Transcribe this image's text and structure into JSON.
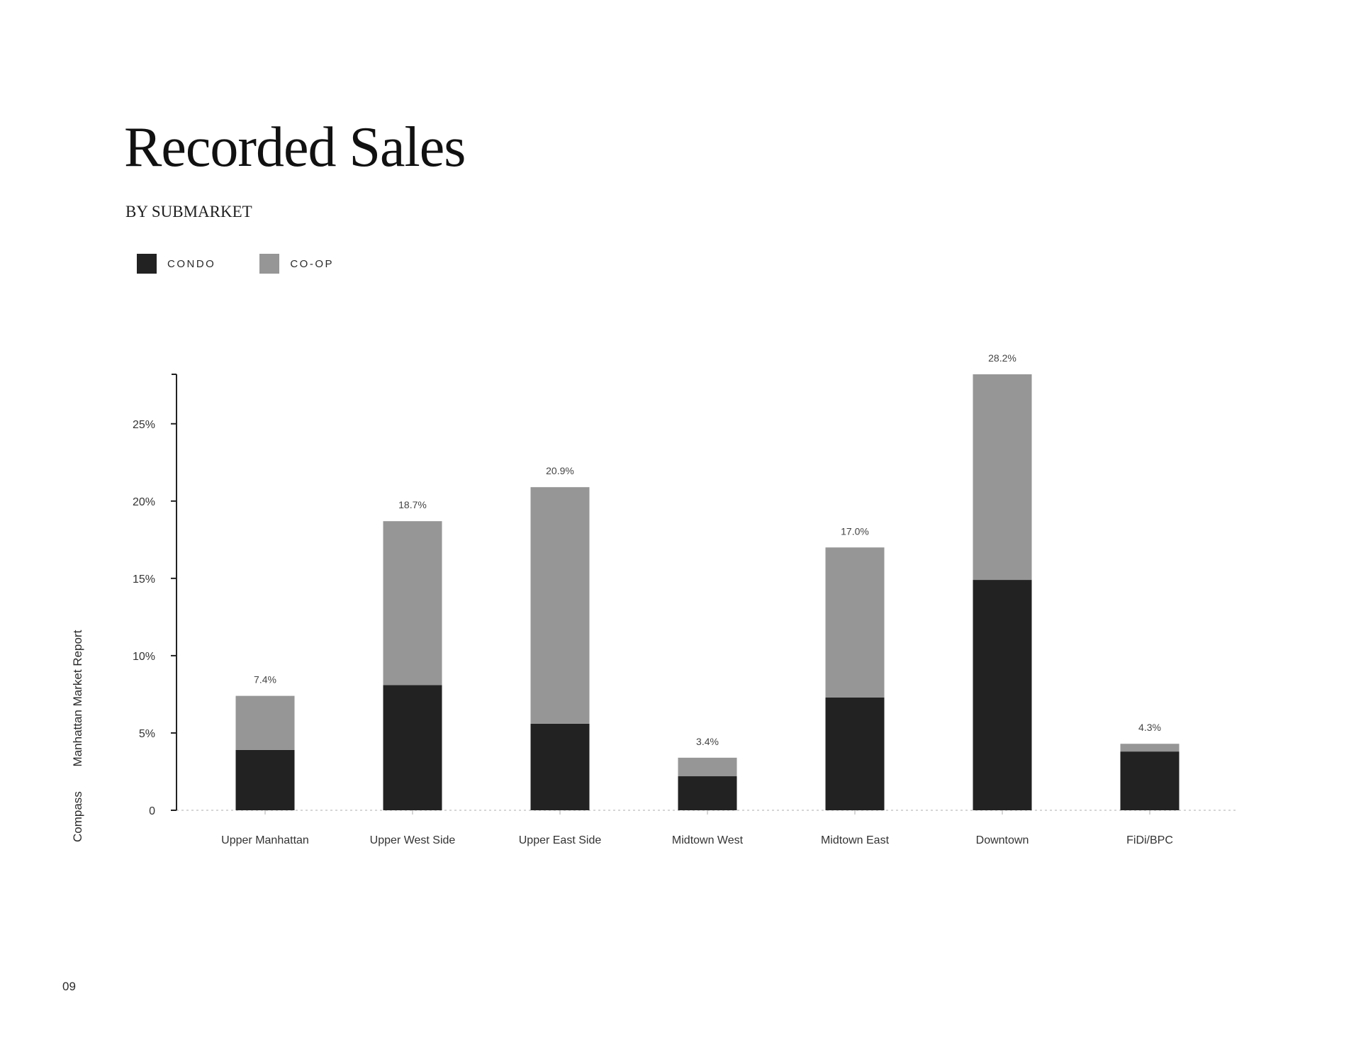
{
  "page": {
    "title": "Recorded Sales",
    "subtitle": "BY SUBMARKET",
    "brand": "Compass",
    "report": "Manhattan Market Report",
    "page_number": "09"
  },
  "legend": {
    "items": [
      {
        "label": "CONDO",
        "color": "#222222"
      },
      {
        "label": "CO-OP",
        "color": "#969696"
      }
    ]
  },
  "chart_data": {
    "type": "bar",
    "stacked": true,
    "title": "Recorded Sales",
    "subtitle": "BY SUBMARKET",
    "categories": [
      "Upper Manhattan",
      "Upper West Side",
      "Upper East Side",
      "Midtown West",
      "Midtown East",
      "Downtown",
      "FiDi/BPC"
    ],
    "series": [
      {
        "name": "CONDO",
        "color": "#222222",
        "values": [
          3.9,
          8.1,
          5.6,
          2.2,
          7.3,
          14.9,
          3.8
        ]
      },
      {
        "name": "CO-OP",
        "color": "#969696",
        "values": [
          3.5,
          10.6,
          15.3,
          1.2,
          9.7,
          13.3,
          0.5
        ]
      }
    ],
    "totals": [
      7.4,
      18.7,
      20.9,
      3.4,
      17.0,
      28.2,
      4.3
    ],
    "total_labels": [
      "7.4%",
      "18.7%",
      "20.9%",
      "3.4%",
      "17.0%",
      "28.2%",
      "4.3%"
    ],
    "ylim": [
      0,
      28.2
    ],
    "yticks": [
      0,
      5,
      10,
      15,
      20,
      25
    ],
    "ytick_labels": [
      "0",
      "5%",
      "10%",
      "15%",
      "20%",
      "25%"
    ],
    "xlabel": "",
    "ylabel": "",
    "grid": false,
    "legend_position": "top-left"
  }
}
